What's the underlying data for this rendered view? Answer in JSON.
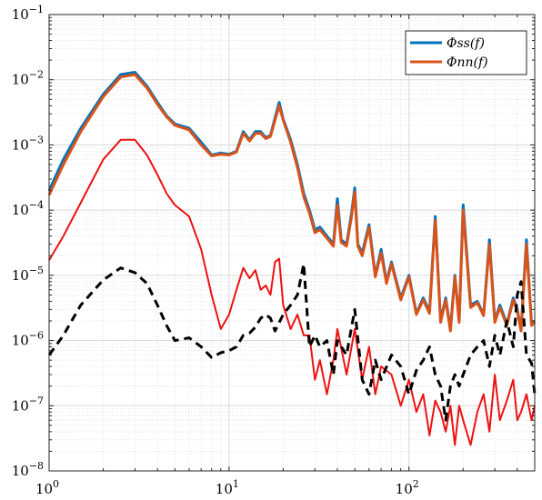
{
  "chart_data": {
    "type": "line",
    "title": "",
    "xlabel": "",
    "ylabel": "",
    "x_scale": "log",
    "y_scale": "log",
    "xlim": [
      1,
      500
    ],
    "ylim": [
      1e-08,
      0.1
    ],
    "grid": true,
    "minor_grid": true,
    "legend_position": "top-right",
    "x_ticks": [
      {
        "value": 1,
        "base": "10",
        "exp": "0"
      },
      {
        "value": 10,
        "base": "10",
        "exp": "1"
      },
      {
        "value": 100,
        "base": "10",
        "exp": "2"
      }
    ],
    "y_ticks": [
      {
        "value": 1e-08,
        "base": "10",
        "exp": "−8"
      },
      {
        "value": 1e-07,
        "base": "10",
        "exp": "−7"
      },
      {
        "value": 1e-06,
        "base": "10",
        "exp": "−6"
      },
      {
        "value": 1e-05,
        "base": "10",
        "exp": "−5"
      },
      {
        "value": 0.0001,
        "base": "10",
        "exp": "−4"
      },
      {
        "value": 0.001,
        "base": "10",
        "exp": "−3"
      },
      {
        "value": 0.01,
        "base": "10",
        "exp": "−2"
      },
      {
        "value": 0.1,
        "base": "10",
        "exp": "−1"
      }
    ],
    "series": [
      {
        "name": "Φss(f)",
        "legend": true,
        "color": "#0072BD",
        "width": 3,
        "dash": "",
        "x": [
          1,
          1.2,
          1.5,
          2,
          2.5,
          3,
          3.5,
          4,
          4.5,
          5,
          6,
          7,
          8,
          9,
          10,
          11,
          12,
          13,
          14,
          15,
          16,
          17,
          18,
          19,
          20,
          22,
          24,
          26,
          28,
          30,
          32,
          35,
          38,
          40,
          42,
          45,
          48,
          50,
          52,
          55,
          60,
          65,
          70,
          75,
          80,
          90,
          100,
          110,
          120,
          130,
          140,
          150,
          160,
          170,
          180,
          190,
          200,
          220,
          240,
          260,
          280,
          300,
          320,
          350,
          380,
          400,
          420,
          450,
          480,
          500
        ],
        "y": [
          0.0002,
          0.0006,
          0.0018,
          0.006,
          0.012,
          0.013,
          0.008,
          0.0045,
          0.0028,
          0.0021,
          0.0018,
          0.0011,
          0.0007,
          0.00075,
          0.00072,
          0.0008,
          0.0016,
          0.0012,
          0.0016,
          0.0016,
          0.0013,
          0.0014,
          0.0026,
          0.0045,
          0.0025,
          0.0012,
          0.0005,
          0.00018,
          0.0001,
          5e-05,
          5.5e-05,
          4e-05,
          3e-05,
          0.00015,
          3.5e-05,
          3e-05,
          9e-05,
          0.00022,
          3e-05,
          2.2e-05,
          6e-05,
          1e-05,
          2.5e-05,
          8e-06,
          1.6e-05,
          4.5e-06,
          1e-05,
          2.6e-06,
          4.5e-06,
          2.8e-06,
          8e-05,
          2e-06,
          4.5e-06,
          1.5e-06,
          1e-05,
          2e-06,
          0.00012,
          3.5e-06,
          4e-06,
          2.5e-06,
          3.5e-05,
          2e-06,
          3.5e-06,
          1.8e-06,
          4.5e-06,
          3e-06,
          1.5e-06,
          3.5e-05,
          1.8e-06,
          2e-06
        ]
      },
      {
        "name": "Φnn(f)",
        "legend": true,
        "color": "#D95319",
        "width": 3,
        "dash": "",
        "x": [
          1,
          1.2,
          1.5,
          2,
          2.5,
          3,
          3.5,
          4,
          4.5,
          5,
          6,
          7,
          8,
          9,
          10,
          11,
          12,
          13,
          14,
          15,
          16,
          17,
          18,
          19,
          20,
          22,
          24,
          26,
          28,
          30,
          32,
          35,
          38,
          40,
          42,
          45,
          48,
          50,
          52,
          55,
          60,
          65,
          70,
          75,
          80,
          90,
          100,
          110,
          120,
          130,
          140,
          150,
          160,
          170,
          180,
          190,
          200,
          220,
          240,
          260,
          280,
          300,
          320,
          350,
          380,
          400,
          420,
          450,
          480,
          500
        ],
        "y": [
          0.00017,
          0.0005,
          0.0016,
          0.0055,
          0.011,
          0.012,
          0.0075,
          0.0042,
          0.0027,
          0.002,
          0.0017,
          0.001,
          0.00068,
          0.00072,
          0.0007,
          0.00078,
          0.0015,
          0.00115,
          0.0015,
          0.0015,
          0.00125,
          0.00135,
          0.0024,
          0.004,
          0.0024,
          0.0011,
          0.00045,
          0.00016,
          9e-05,
          4.5e-05,
          5e-05,
          3.7e-05,
          2.8e-05,
          0.00012,
          3.2e-05,
          2.8e-05,
          8e-05,
          0.00019,
          2.8e-05,
          2e-05,
          5.5e-05,
          9.5e-06,
          2.2e-05,
          7.5e-06,
          1.5e-05,
          4.2e-06,
          9.5e-06,
          2.5e-06,
          4.2e-06,
          2.6e-06,
          7e-05,
          1.9e-06,
          4.2e-06,
          1.4e-06,
          9.5e-06,
          1.9e-06,
          0.0001,
          3.2e-06,
          3.8e-06,
          2.4e-06,
          3e-05,
          1.9e-06,
          3.2e-06,
          1.7e-06,
          4.2e-06,
          2.8e-06,
          1.4e-06,
          3e-05,
          1.7e-06,
          1.9e-06
        ]
      },
      {
        "name": "",
        "legend": false,
        "color": "#EE1111",
        "width": 2,
        "dash": "",
        "x": [
          1,
          1.2,
          1.5,
          2,
          2.5,
          3,
          3.5,
          4,
          4.5,
          5,
          6,
          7,
          8,
          9,
          10,
          11,
          12,
          13,
          14,
          15,
          16,
          17,
          18,
          19,
          20,
          22,
          24,
          26,
          28,
          30,
          32,
          35,
          38,
          40,
          45,
          50,
          55,
          60,
          65,
          70,
          80,
          90,
          100,
          110,
          120,
          130,
          140,
          150,
          160,
          170,
          180,
          190,
          200,
          220,
          240,
          260,
          280,
          300,
          320,
          350,
          380,
          400,
          420,
          450,
          480,
          500
        ],
        "y": [
          1.7e-05,
          4e-05,
          0.00013,
          0.0006,
          0.0012,
          0.0012,
          0.0007,
          0.00035,
          0.00018,
          0.00012,
          8e-05,
          2.5e-05,
          5e-06,
          1.5e-06,
          2.5e-06,
          6e-06,
          1.3e-05,
          9e-06,
          1.2e-05,
          6e-06,
          7e-06,
          5e-06,
          1.6e-05,
          1.8e-05,
          3.5e-06,
          1.5e-06,
          2.5e-06,
          1.2e-06,
          1.2e-06,
          2.5e-07,
          5e-07,
          1.5e-07,
          5e-07,
          1.5e-06,
          3e-07,
          1.5e-06,
          2.5e-07,
          8e-07,
          1.5e-07,
          4e-07,
          3e-07,
          1e-07,
          2.5e-07,
          8e-08,
          1.5e-07,
          3.5e-08,
          1.2e-07,
          8e-08,
          4e-08,
          1e-07,
          2.5e-08,
          1e-07,
          6e-08,
          2.5e-08,
          8e-08,
          1.5e-07,
          4e-08,
          3e-07,
          6e-08,
          1.2e-07,
          2.5e-07,
          6e-08,
          8e-08,
          1.5e-07,
          6e-08,
          1e-07
        ]
      },
      {
        "name": "",
        "legend": false,
        "color": "#000000",
        "width": 3,
        "dash": "9,6",
        "x": [
          1,
          1.2,
          1.5,
          2,
          2.5,
          3,
          3.5,
          4,
          4.5,
          5,
          6,
          7,
          8,
          9,
          10,
          11,
          12,
          13,
          14,
          15,
          16,
          17,
          18,
          20,
          22,
          24,
          26,
          28,
          30,
          32,
          35,
          38,
          40,
          45,
          50,
          55,
          60,
          65,
          70,
          80,
          90,
          100,
          110,
          120,
          130,
          140,
          150,
          160,
          170,
          180,
          190,
          200,
          220,
          240,
          260,
          280,
          300,
          320,
          350,
          380,
          400,
          420,
          450,
          480,
          500
        ],
        "y": [
          6e-07,
          1.2e-06,
          3.5e-06,
          8.5e-06,
          1.3e-05,
          1.1e-05,
          7.5e-06,
          3.5e-06,
          1.7e-06,
          1e-06,
          1.1e-06,
          8e-07,
          5.5e-07,
          6.5e-07,
          7e-07,
          8e-07,
          1.2e-06,
          1.3e-06,
          1.6e-06,
          2.2e-06,
          2.5e-06,
          2.2e-06,
          1.4e-06,
          2.5e-06,
          3.5e-06,
          5e-06,
          1.5e-05,
          8e-07,
          1.2e-06,
          8e-07,
          1e-06,
          3e-07,
          1e-06,
          6e-07,
          3e-06,
          2.5e-07,
          1.5e-07,
          5e-07,
          2.5e-07,
          6e-07,
          4e-07,
          1.5e-07,
          3.5e-07,
          5e-07,
          8e-07,
          3e-07,
          2e-07,
          6e-08,
          2e-07,
          3e-07,
          2e-07,
          3e-07,
          6e-07,
          8e-07,
          1e-06,
          4e-07,
          1.2e-06,
          6e-07,
          2e-06,
          8e-07,
          5e-06,
          8e-06,
          6e-07,
          4.5e-07,
          1.5e-07
        ]
      }
    ]
  }
}
